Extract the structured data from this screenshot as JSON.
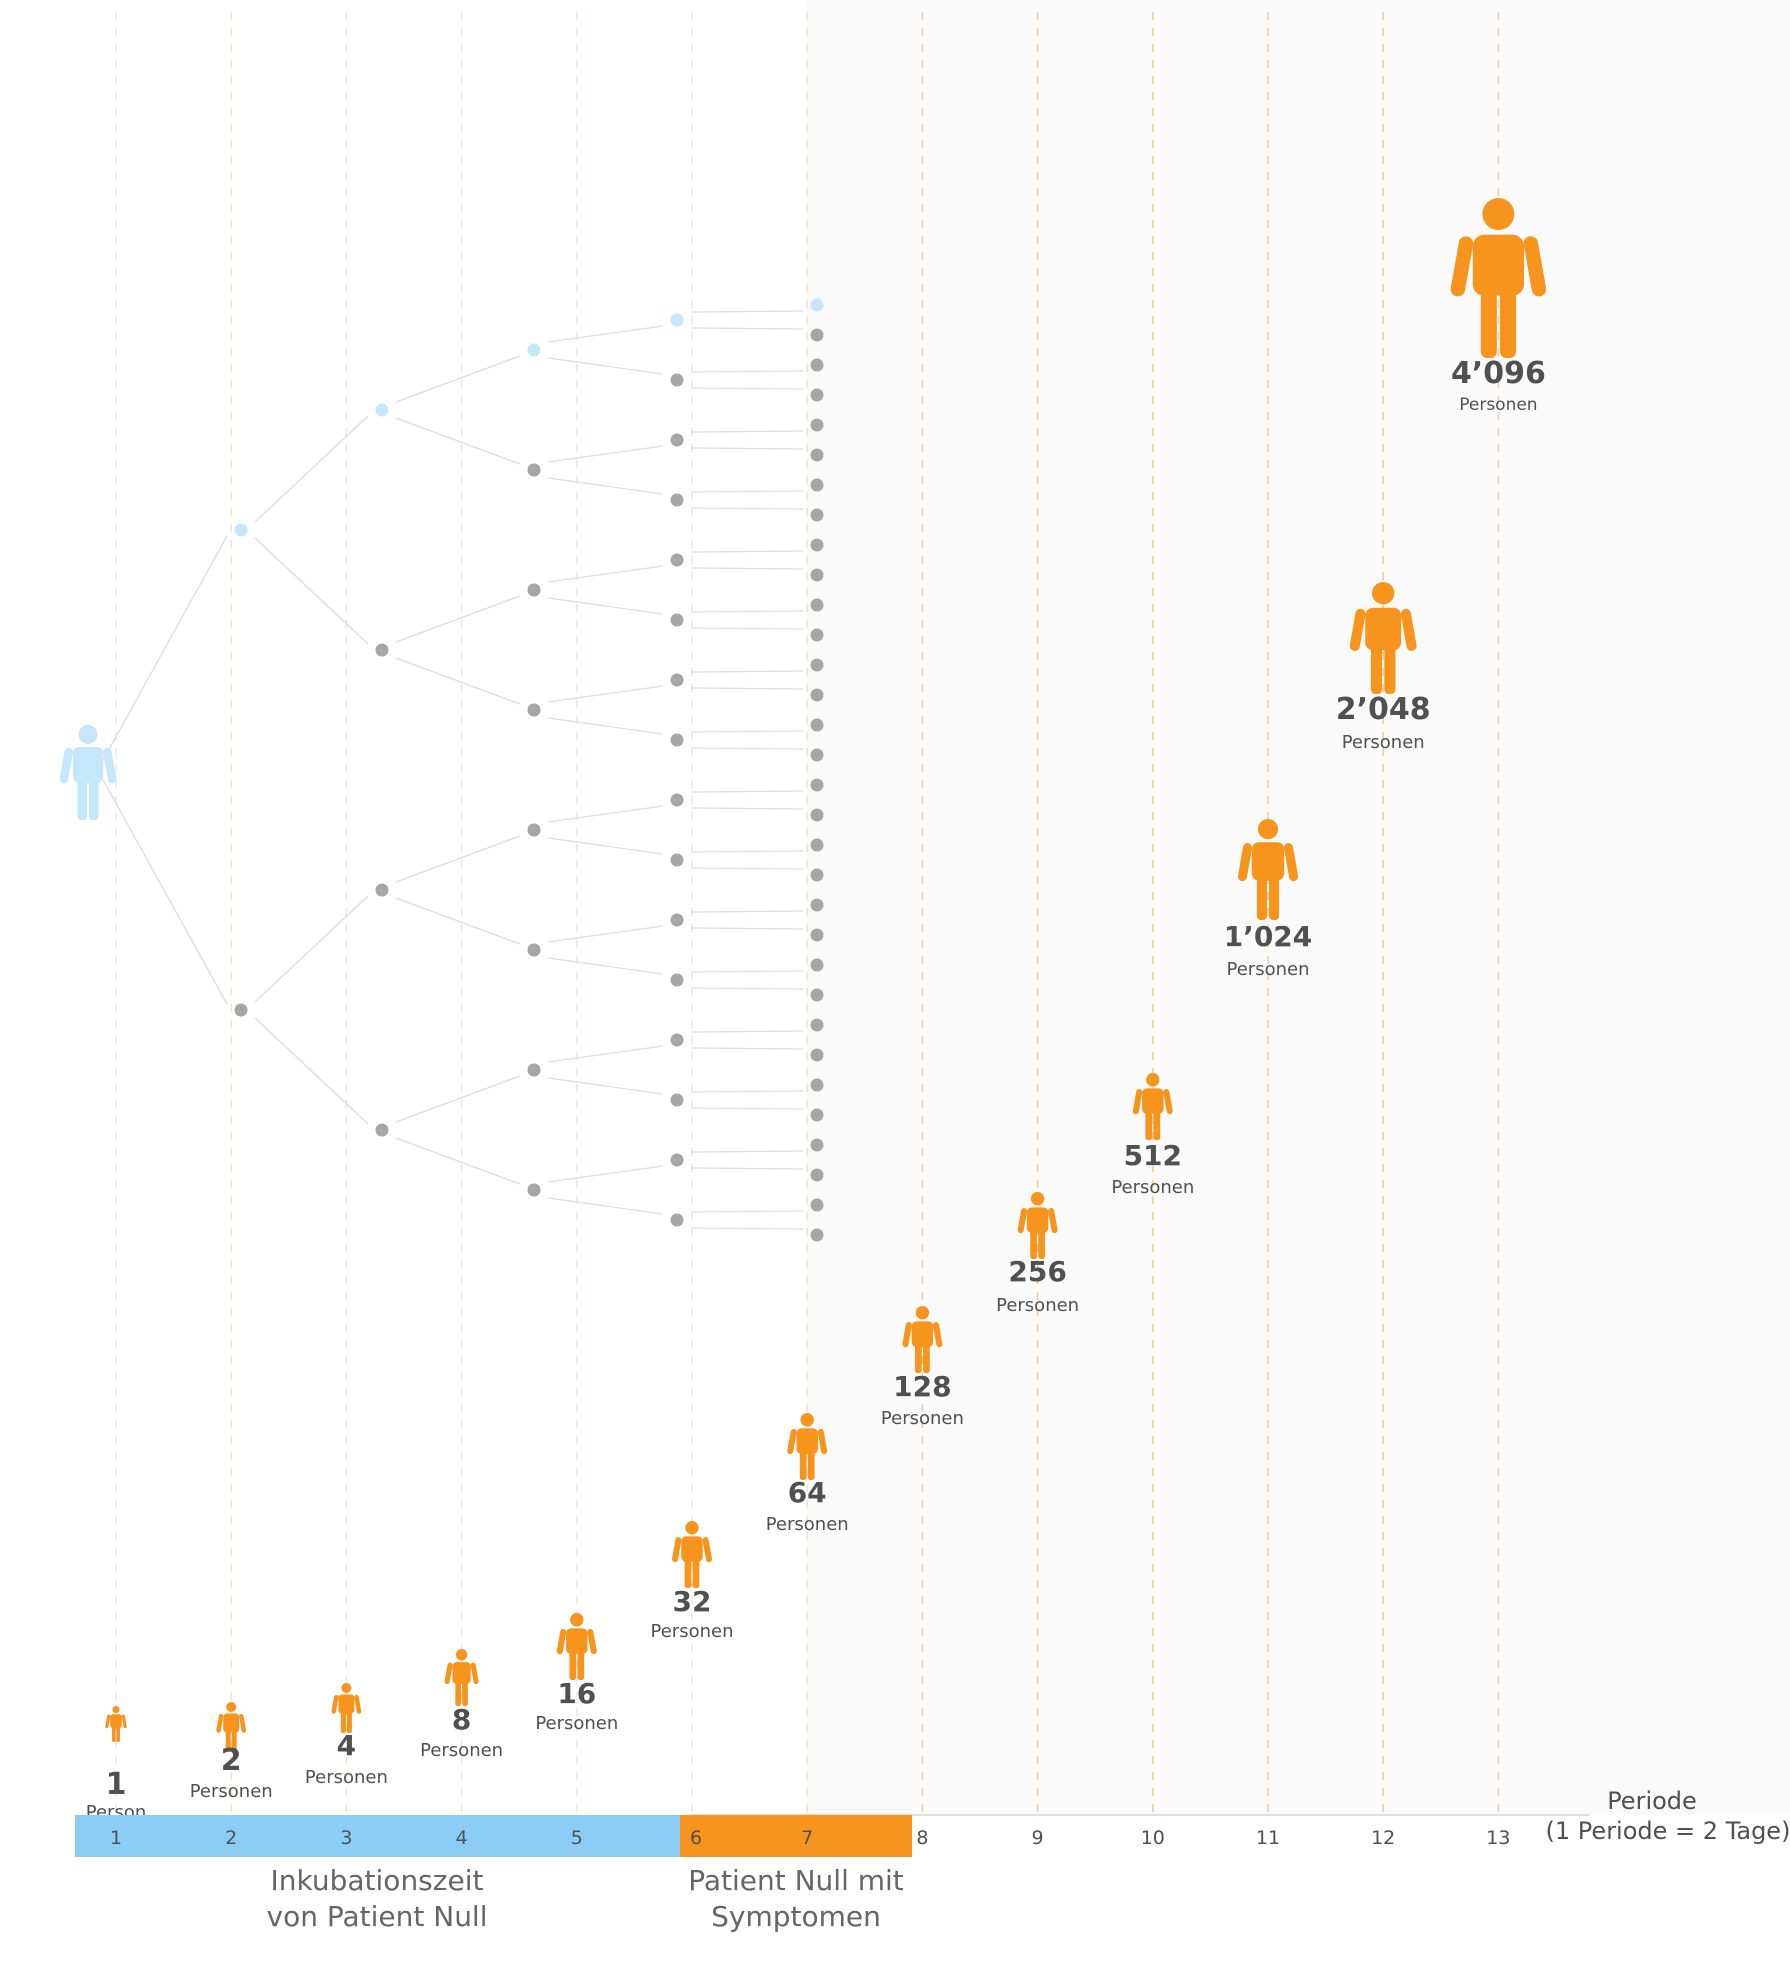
{
  "chart_data": {
    "type": "exponential-growth-pictogram",
    "x_axis": {
      "title": "Periode",
      "subtitle": "(1 Periode = 2 Tage)",
      "ticks": [
        "1",
        "2",
        "3",
        "4",
        "5",
        "6",
        "7",
        "8",
        "9",
        "10",
        "11",
        "12",
        "13"
      ]
    },
    "points": [
      {
        "period": 1,
        "count": "1",
        "unit": "Person"
      },
      {
        "period": 2,
        "count": "2",
        "unit": "Personen"
      },
      {
        "period": 3,
        "count": "4",
        "unit": "Personen"
      },
      {
        "period": 4,
        "count": "8",
        "unit": "Personen"
      },
      {
        "period": 5,
        "count": "16",
        "unit": "Personen"
      },
      {
        "period": 6,
        "count": "32",
        "unit": "Personen"
      },
      {
        "period": 7,
        "count": "64",
        "unit": "Personen"
      },
      {
        "period": 8,
        "count": "128",
        "unit": "Personen"
      },
      {
        "period": 9,
        "count": "256",
        "unit": "Personen"
      },
      {
        "period": 10,
        "count": "512",
        "unit": "Personen"
      },
      {
        "period": 11,
        "count": "1’024",
        "unit": "Personen"
      },
      {
        "period": 12,
        "count": "2’048",
        "unit": "Personen"
      },
      {
        "period": 13,
        "count": "4’096",
        "unit": "Personen"
      }
    ],
    "values": [
      1,
      2,
      4,
      8,
      16,
      32,
      64,
      128,
      256,
      512,
      1024,
      2048,
      4096
    ],
    "phases": [
      {
        "label_line1": "Inkubationszeit",
        "label_line2": "von Patient Null",
        "from_period": 1,
        "to_period": 5,
        "color": "#8ccdf5"
      },
      {
        "label_line1": "Patient Null mit",
        "label_line2": "Symptomen",
        "from_period": 6,
        "to_period": 7,
        "color": "#f7941d"
      }
    ],
    "tree": {
      "levels": 6,
      "highlight_color": "#c6e6f9",
      "node_color": "#a6a6a6"
    },
    "colors": {
      "person": "#f7941d",
      "patient_zero": "#c6e6f9",
      "grid_line": "#f5c99a",
      "text": "#505050"
    }
  }
}
